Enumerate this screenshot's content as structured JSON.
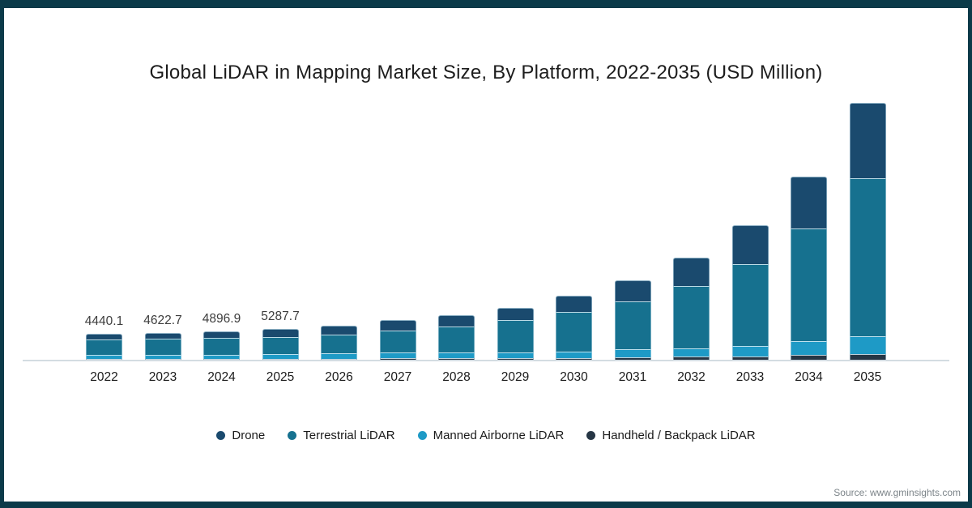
{
  "title": "Global LiDAR in Mapping Market Size, By Platform, 2022-2035 (USD Million)",
  "source_text": "Source: www.gminsights.com",
  "colors": {
    "frame": "#0b3a49",
    "drone": "#1a4a6e",
    "terrestrial": "#16718f",
    "manned": "#1e9ac6",
    "handheld": "#263645",
    "axis_line": "#d3dce2",
    "title_text": "#1d1d1d",
    "value_label_text": "#3d3d3d",
    "source_text": "#7c8489"
  },
  "chart_data": {
    "type": "bar",
    "stacked": true,
    "title": "Global LiDAR in Mapping Market Size, By Platform, 2022-2035 (USD Million)",
    "xlabel": "",
    "ylabel": "USD Million",
    "y_axis_visible": false,
    "grid": false,
    "ylim": [
      0,
      45000
    ],
    "legend_position": "bottom",
    "categories": [
      "2022",
      "2023",
      "2024",
      "2025",
      "2026",
      "2027",
      "2028",
      "2029",
      "2030",
      "2031",
      "2032",
      "2033",
      "2034",
      "2035"
    ],
    "series": [
      {
        "name": "Handheld / Backpack LiDAR",
        "color_key": "handheld",
        "values": [
          140,
          145,
          150,
          160,
          190,
          280,
          280,
          280,
          280,
          420,
          550,
          550,
          830,
          970
        ]
      },
      {
        "name": "Manned Airborne LiDAR",
        "color_key": "manned",
        "values": [
          690,
          700,
          730,
          790,
          930,
          970,
          970,
          970,
          1110,
          1390,
          1390,
          1800,
          2360,
          3050
        ]
      },
      {
        "name": "Terrestrial LiDAR",
        "color_key": "terrestrial",
        "values": [
          2640,
          2750,
          2830,
          2930,
          3230,
          3750,
          4440,
          5550,
          6800,
          8190,
          10680,
          14010,
          19290,
          27060
        ]
      },
      {
        "name": "Drone",
        "color_key": "drone",
        "values": [
          970.1,
          1027.7,
          1186.9,
          1407.7,
          1480,
          1800,
          1940,
          2080,
          2780,
          3610,
          4860,
          6660,
          8880,
          12900
        ]
      }
    ],
    "totals_estimated": [
      4440.1,
      4622.7,
      4896.9,
      5287.7,
      5830,
      6800,
      7630,
      8880,
      10970,
      13610,
      17480,
      23020,
      31360,
      43980
    ],
    "bar_value_labels": {
      "2022": "4440.1",
      "2023": "4622.7",
      "2024": "4896.9",
      "2025": "5287.7"
    },
    "legend": [
      {
        "label": "Drone",
        "color_key": "drone"
      },
      {
        "label": "Terrestrial LiDAR",
        "color_key": "terrestrial"
      },
      {
        "label": "Manned Airborne LiDAR",
        "color_key": "manned"
      },
      {
        "label": "Handheld / Backpack LiDAR",
        "color_key": "handheld"
      }
    ]
  }
}
